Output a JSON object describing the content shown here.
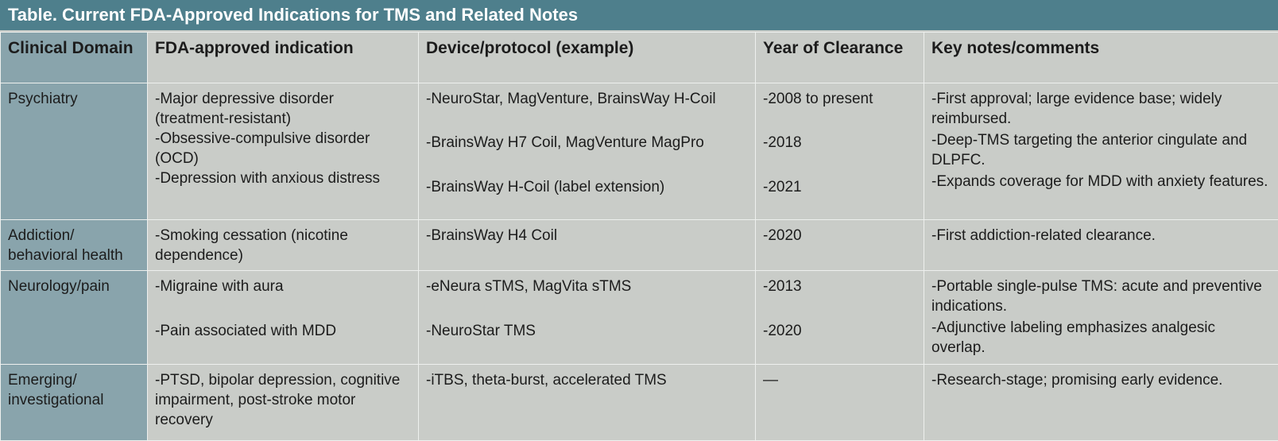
{
  "title": "Table. Current FDA-Approved Indications for TMS and Related Notes",
  "headers": [
    "Clinical Domain",
    "FDA-approved indication",
    "Device/protocol (example)",
    "Year of Clearance",
    "Key notes/comments"
  ],
  "rows": [
    {
      "domain": "Psychiatry",
      "indications": [
        "-Major depressive disorder (treatment-resistant)",
        "-Obsessive-compulsive disorder (OCD)",
        "-Depression with anxious distress"
      ],
      "devices": [
        "-NeuroStar, MagVenture, BrainsWay H-Coil",
        "-BrainsWay H7 Coil, MagVenture MagPro",
        "-BrainsWay H-Coil (label extension)"
      ],
      "years": [
        "-2008 to present",
        "-2018",
        "-2021"
      ],
      "notes": [
        "-First approval; large evidence base; widely reimbursed.",
        "-Deep-TMS targeting the anterior cingulate and DLPFC.",
        "-Expands coverage for MDD with anxiety features."
      ]
    },
    {
      "domain": "Addiction/ behavioral health",
      "indications": [
        "-Smoking cessation (nicotine dependence)"
      ],
      "devices": [
        "-BrainsWay H4 Coil"
      ],
      "years": [
        "-2020"
      ],
      "notes": [
        "-First addiction-related clearance."
      ]
    },
    {
      "domain": "Neurology/pain",
      "indications": [
        "-Migraine with aura",
        "-Pain associated with MDD"
      ],
      "devices": [
        "-eNeura sTMS, MagVita sTMS",
        "-NeuroStar TMS"
      ],
      "years": [
        "-2013",
        "-2020"
      ],
      "notes": [
        "-Portable single-pulse TMS: acute and preventive indications.",
        "-Adjunctive labeling emphasizes analgesic overlap."
      ]
    },
    {
      "domain": "Emerging/ investigational",
      "indications": [
        "-PTSD, bipolar depression, cognitive impairment, post-stroke motor recovery"
      ],
      "devices": [
        "-iTBS, theta-burst, accelerated TMS"
      ],
      "years": [
        "—"
      ],
      "notes": [
        "-Research-stage; promising early evidence."
      ]
    }
  ]
}
